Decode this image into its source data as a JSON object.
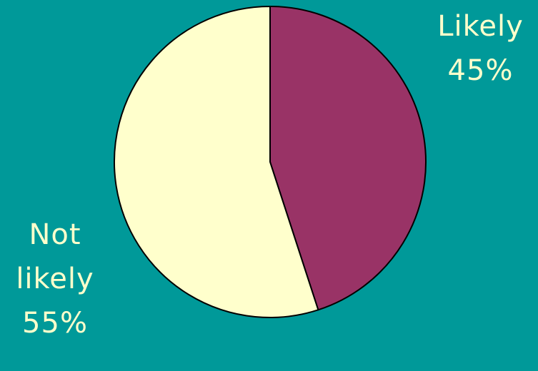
{
  "colors": {
    "background": "#009999",
    "label_text": "#ffffcc",
    "outline": "#000000"
  },
  "chart_data": {
    "type": "pie",
    "title": "",
    "slices": [
      {
        "name_lines": [
          "Likely"
        ],
        "percent_label": "45%",
        "value": 45,
        "color": "#993366"
      },
      {
        "name_lines": [
          "Not",
          "likely"
        ],
        "percent_label": "55%",
        "value": 55,
        "color": "#ffffcc"
      }
    ],
    "start_angle_deg": 0,
    "direction": "clockwise",
    "legend": "none"
  }
}
